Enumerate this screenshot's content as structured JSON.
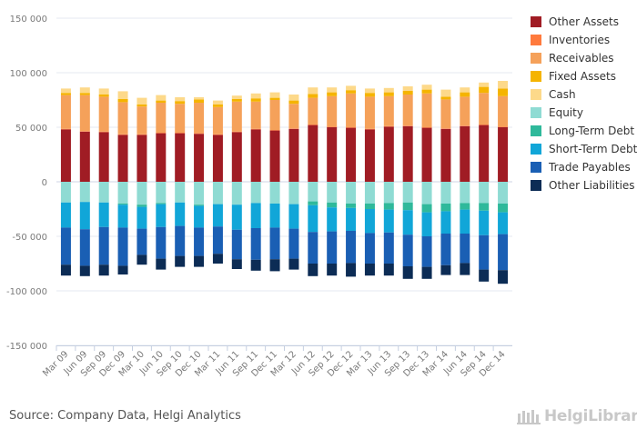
{
  "chart_data": {
    "type": "bar",
    "stacked": true,
    "categories": [
      "Mar 09",
      "Jun 09",
      "Sep 09",
      "Dec 09",
      "Mar 10",
      "Jun 10",
      "Sep 10",
      "Dec 10",
      "Mar 11",
      "Jun 11",
      "Sep 11",
      "Dec 11",
      "Mar 12",
      "Jun 12",
      "Sep 12",
      "Dec 12",
      "Mar 13",
      "Jun 13",
      "Sep 13",
      "Dec 13",
      "Mar 14",
      "Jun 14",
      "Sep 14",
      "Dec 14"
    ],
    "x_tick_labels": [
      "Mar 09",
      "Jun 09",
      "Sep 09",
      "Dec 09",
      "Mar 10",
      "Jun 10",
      "Sep 10",
      "Dec 10",
      "Mar 11",
      "Jun 11",
      "Sep 11",
      "Dec 11",
      "Mar 12",
      "Jun 12",
      "Sep 12",
      "Dec 12",
      "Mar 13",
      "Jun 13",
      "Sep 13",
      "Dec 13",
      "Mar 14",
      "Jun 14",
      "Sep 14",
      "Dec 14"
    ],
    "y_tick_labels": [
      "150 000",
      "100 000",
      "50 000",
      "0",
      "-50 000",
      "-100 000",
      "-150 000"
    ],
    "y_ticks": [
      150000,
      100000,
      50000,
      0,
      -50000,
      -100000,
      -150000
    ],
    "ylim": [
      -150000,
      150000
    ],
    "grid": true,
    "legend_position": "right",
    "series": [
      {
        "name": "Other Assets",
        "color": "#a01c24",
        "side": "positive",
        "values": [
          48000,
          46000,
          45500,
          43000,
          43000,
          44500,
          44500,
          44000,
          43000,
          45500,
          48000,
          47000,
          48500,
          52000,
          50000,
          49500,
          48000,
          50500,
          51000,
          49500,
          48500,
          51000,
          52000,
          50000
        ]
      },
      {
        "name": "Inventories",
        "color": "#ff7a3d",
        "side": "positive",
        "values": [
          500,
          500,
          500,
          500,
          500,
          500,
          500,
          500,
          500,
          500,
          500,
          500,
          500,
          500,
          500,
          500,
          500,
          500,
          500,
          500,
          500,
          500,
          500,
          500
        ]
      },
      {
        "name": "Receivables",
        "color": "#f5a15a",
        "side": "positive",
        "values": [
          31000,
          33000,
          32000,
          29500,
          25500,
          27500,
          26500,
          28000,
          25000,
          27500,
          25000,
          27500,
          22500,
          24500,
          28000,
          31000,
          29500,
          27500,
          28500,
          31000,
          26500,
          26500,
          29000,
          28000
        ]
      },
      {
        "name": "Fixed Assets",
        "color": "#f5b400",
        "side": "positive",
        "values": [
          2000,
          2000,
          2000,
          3000,
          2000,
          2000,
          2500,
          3000,
          2500,
          2500,
          3000,
          2000,
          3000,
          3500,
          3500,
          3000,
          3500,
          3500,
          3500,
          3500,
          2500,
          4000,
          5500,
          7000
        ]
      },
      {
        "name": "Cash",
        "color": "#fdd98a",
        "side": "positive",
        "values": [
          4000,
          5000,
          5500,
          7000,
          6000,
          5000,
          3500,
          2000,
          3500,
          3000,
          4500,
          5000,
          5500,
          6000,
          4500,
          4000,
          4000,
          4000,
          4000,
          4500,
          6500,
          4500,
          4000,
          7000
        ]
      },
      {
        "name": "Equity",
        "color": "#8fdbd3",
        "side": "negative",
        "values": [
          19000,
          18500,
          19000,
          20000,
          21000,
          19500,
          19000,
          21000,
          20500,
          21000,
          19500,
          20000,
          20500,
          18000,
          19000,
          20000,
          20000,
          19500,
          19000,
          20500,
          20000,
          19500,
          19500,
          20000
        ]
      },
      {
        "name": "Long-Term Debt",
        "color": "#2fb99b",
        "side": "negative",
        "values": [
          0,
          0,
          0,
          1000,
          2000,
          1000,
          0,
          1000,
          0,
          0,
          0,
          0,
          0,
          3500,
          4500,
          4000,
          5000,
          6000,
          7000,
          7500,
          7000,
          6000,
          7000,
          8000
        ]
      },
      {
        "name": "Short-Term Debt",
        "color": "#11a6d8",
        "side": "negative",
        "values": [
          23000,
          25000,
          22500,
          21000,
          20000,
          21000,
          21500,
          20000,
          20500,
          23000,
          23000,
          22000,
          22500,
          24500,
          22000,
          21000,
          22000,
          21000,
          22500,
          22000,
          20500,
          22000,
          22500,
          20000
        ]
      },
      {
        "name": "Trade Payables",
        "color": "#1a5fb4",
        "side": "negative",
        "values": [
          34000,
          33500,
          34500,
          35000,
          24000,
          29000,
          27500,
          26000,
          25000,
          27000,
          29000,
          29000,
          27500,
          29000,
          29500,
          29500,
          28000,
          28500,
          29000,
          28000,
          29000,
          27000,
          31500,
          33000
        ]
      },
      {
        "name": "Other Liabilities",
        "color": "#0c2c55",
        "side": "negative",
        "values": [
          10000,
          9500,
          10000,
          8000,
          9000,
          10000,
          10000,
          10000,
          9000,
          9000,
          10000,
          11000,
          10000,
          11500,
          11000,
          12500,
          11000,
          11000,
          11500,
          11000,
          9000,
          11000,
          11000,
          12500
        ]
      }
    ]
  },
  "footer": {
    "source": "Source: Company Data, Helgi Analytics",
    "brand": "HelgiLibrary."
  }
}
